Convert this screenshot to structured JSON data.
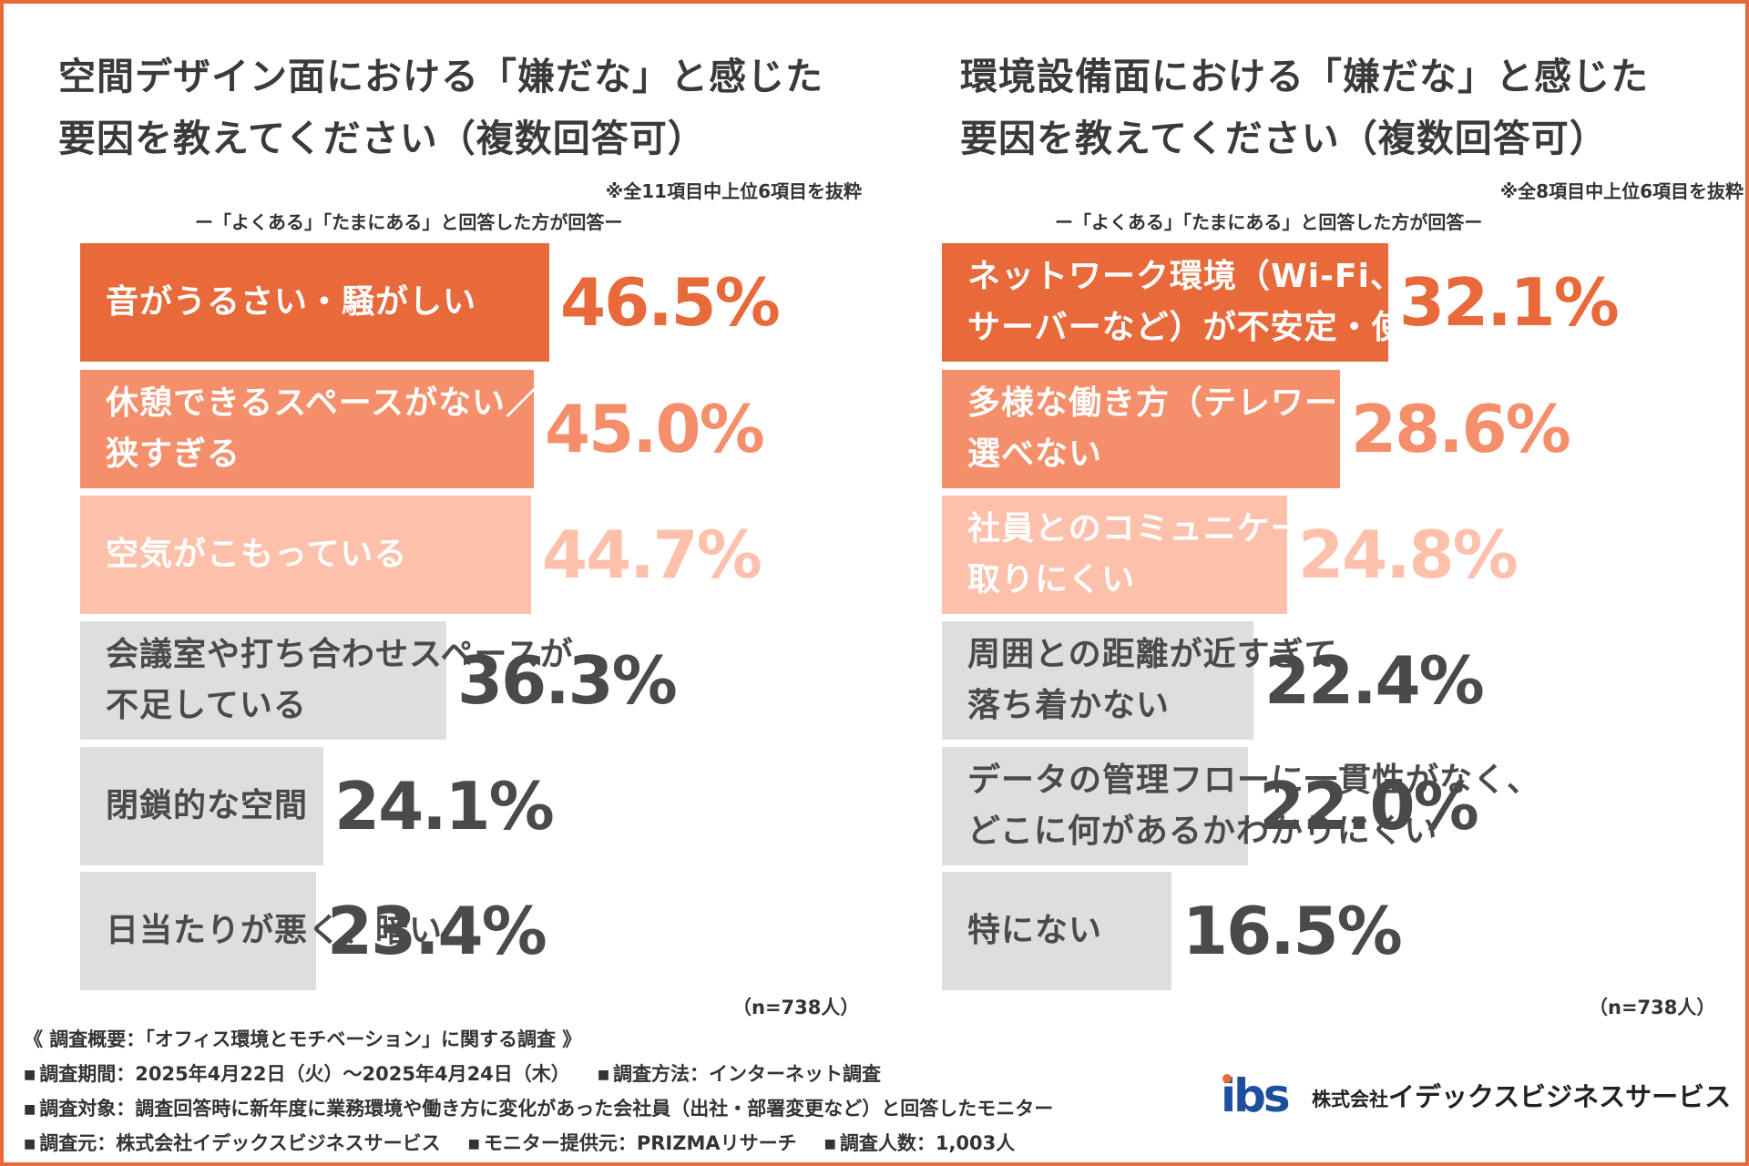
{
  "colors": {
    "accent": "#E8693A",
    "rank2": "#F58E6A",
    "rank3": "#FDC0AA",
    "gray": "#DEDEDE",
    "gray_text": "#4a4a4a"
  },
  "chart_data": [
    {
      "type": "bar",
      "orientation": "horizontal",
      "title_line1": "空間デザイン面における「嫌だな」と感じた",
      "title_line2": "要因を教えてください（複数回答可）",
      "note": "※全11項目中上位6項目を抜粋",
      "subnote": "ー「よくある」「たまにある」と回答した方が回答ー",
      "n_label": "（n=738人）",
      "categories": [
        "音がうるさい・騒がしい",
        "休憩できるスペースがない／\n狭すぎる",
        "空気がこもっている",
        "会議室や打ち合わせスペースが\n不足している",
        "閉鎖的な空間",
        "日当たりが悪く、暗い"
      ],
      "values": [
        46.5,
        45.0,
        44.7,
        36.3,
        24.1,
        23.4
      ],
      "value_labels": [
        "46.5%",
        "45.0%",
        "44.7%",
        "36.3%",
        "24.1%",
        "23.4%"
      ],
      "xlim": [
        0,
        56
      ]
    },
    {
      "type": "bar",
      "orientation": "horizontal",
      "title_line1": "環境設備面における「嫌だな」と感じた",
      "title_line2": "要因を教えてください（複数回答可）",
      "note": "※全8項目中上位6項目を抜粋",
      "subnote": "ー「よくある」「たまにある」と回答した方が回答ー",
      "n_label": "（n=738人）",
      "categories": [
        "ネットワーク環境（Wi-Fi、電話、共有\nサーバーなど）が不安定・使いづらい",
        "多様な働き方（テレワーク等）が\n選べない",
        "社員とのコミュニケーションが\n取りにくい",
        "周囲との距離が近すぎて\n落ち着かない",
        "データの管理フローに一貫性がなく、\nどこに何があるかわかりにくい",
        "特にない"
      ],
      "values": [
        32.1,
        28.6,
        24.8,
        22.4,
        22.0,
        16.5
      ],
      "value_labels": [
        "32.1%",
        "28.6%",
        "24.8%",
        "22.4%",
        "22.0%",
        "16.5%"
      ],
      "xlim": [
        0,
        40.6
      ]
    }
  ],
  "footer": {
    "summary": "《 調査概要：「オフィス環境とモチベーション」に関する調査 》",
    "period": "調査期間：2025年4月22日（火）～2025年4月24日（木）",
    "method": "調査方法：インターネット調査",
    "target": "調査対象：調査回答時に新年度に業務環境や働き方に変化があった会社員（出社・部署変更など）と回答したモニター",
    "source": "調査元：株式会社イデックスビジネスサービス",
    "provider": "モニター提供元：PRIZMAリサーチ",
    "count": "調査人数：1,003人"
  },
  "logo": {
    "mark": "ibs",
    "prefix": "株式会社",
    "name": "イデックスビジネスサービス"
  }
}
